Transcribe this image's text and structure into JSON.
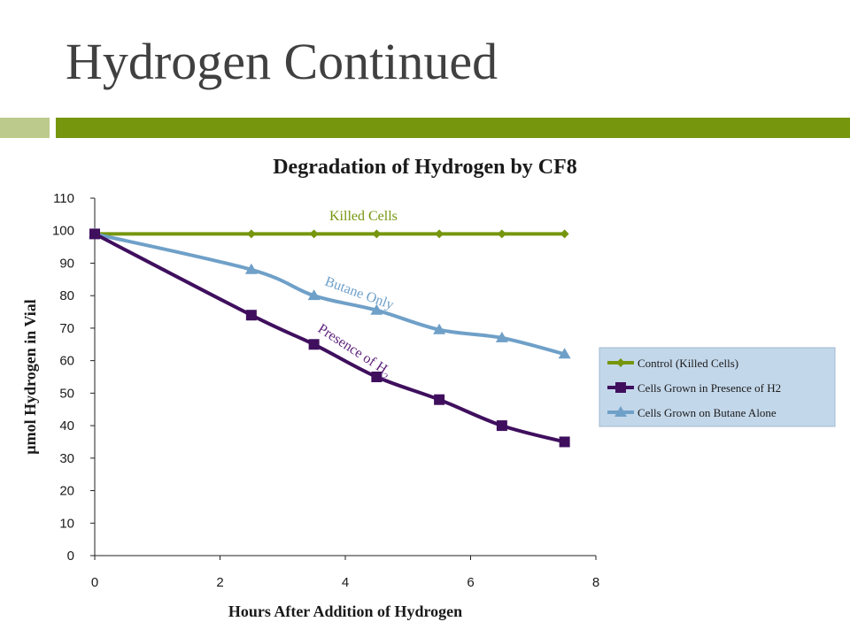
{
  "slide": {
    "title": "Hydrogen Continued",
    "accent_light": "#bccb8c",
    "accent_dark": "#76960e"
  },
  "chart_data": {
    "type": "line",
    "title": "Degradation of Hydrogen by CF8",
    "xlabel": "Hours After Addition of Hydrogen",
    "ylabel": "µmol Hydrogen in Vial",
    "xlim": [
      0,
      8
    ],
    "ylim": [
      0,
      110
    ],
    "x_ticks": [
      0,
      2,
      4,
      6,
      8
    ],
    "y_ticks": [
      0,
      10,
      20,
      30,
      40,
      50,
      60,
      70,
      80,
      90,
      100,
      110
    ],
    "grid": false,
    "legend_position": "right",
    "series": [
      {
        "name": "Control (Killed Cells)",
        "color": "#76960e",
        "marker": "diamond",
        "x": [
          0,
          2.5,
          3.5,
          4.5,
          5.5,
          6.5,
          7.5
        ],
        "y": [
          99,
          99,
          99,
          99,
          99,
          99,
          99
        ]
      },
      {
        "name": "Cells Grown in Presence of H2",
        "color": "#3f0f5e",
        "marker": "square",
        "x": [
          0,
          2.5,
          3.5,
          4.5,
          5.5,
          6.5,
          7.5
        ],
        "y": [
          99,
          74,
          65,
          55,
          48,
          40,
          35
        ]
      },
      {
        "name": "Cells Grown on Butane Alone",
        "color": "#6fa0c8",
        "marker": "triangle",
        "x": [
          0,
          2.5,
          3.5,
          4.5,
          5.5,
          6.5,
          7.5
        ],
        "y": [
          99,
          88,
          80,
          75.5,
          69.5,
          67,
          62
        ]
      }
    ],
    "annotations": [
      {
        "text": "Killed Cells",
        "color": "#76960e"
      },
      {
        "text": "Butane Only",
        "color": "#6fa0c8"
      },
      {
        "text": "Presence of H",
        "subscript": "2",
        "color": "#5b1f7a"
      }
    ]
  }
}
